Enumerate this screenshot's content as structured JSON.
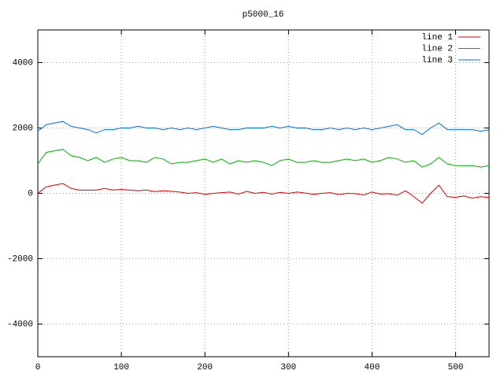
{
  "chart_data": {
    "type": "line",
    "title": "p5000_16",
    "x": [
      0,
      10,
      20,
      30,
      40,
      50,
      60,
      70,
      80,
      90,
      100,
      110,
      120,
      130,
      140,
      150,
      160,
      170,
      180,
      190,
      200,
      210,
      220,
      230,
      240,
      250,
      260,
      270,
      280,
      290,
      300,
      310,
      320,
      330,
      340,
      350,
      360,
      370,
      380,
      390,
      400,
      410,
      420,
      430,
      440,
      450,
      460,
      470,
      480,
      490,
      500,
      510,
      520,
      530,
      540
    ],
    "series": [
      {
        "name": "line 1",
        "color": "#e00000",
        "values": [
          0,
          200,
          250,
          300,
          150,
          100,
          100,
          100,
          150,
          100,
          120,
          100,
          80,
          100,
          50,
          80,
          60,
          40,
          0,
          20,
          -30,
          0,
          20,
          40,
          -20,
          60,
          0,
          30,
          -20,
          30,
          0,
          40,
          10,
          -30,
          0,
          20,
          -40,
          0,
          -10,
          -50,
          40,
          -20,
          -10,
          -60,
          80,
          -100,
          -300,
          0,
          250,
          -100,
          -120,
          -80,
          -150,
          -100,
          -130
        ]
      },
      {
        "name": "line 2",
        "color": "#00b000",
        "values": [
          900,
          1250,
          1300,
          1350,
          1150,
          1100,
          1000,
          1100,
          950,
          1050,
          1100,
          1000,
          1000,
          950,
          1100,
          1050,
          900,
          950,
          950,
          1000,
          1050,
          950,
          1050,
          900,
          1000,
          950,
          1000,
          950,
          850,
          1000,
          1050,
          950,
          950,
          1000,
          950,
          950,
          1000,
          1050,
          1000,
          1050,
          950,
          1000,
          1100,
          1050,
          950,
          1000,
          800,
          900,
          1100,
          900,
          850,
          850,
          850,
          800,
          850
        ]
      },
      {
        "name": "line 3",
        "color": "#0070e0",
        "values": [
          1900,
          2100,
          2150,
          2200,
          2050,
          2000,
          1950,
          1850,
          1950,
          1950,
          2000,
          2000,
          2050,
          2000,
          2000,
          1950,
          2000,
          1950,
          2000,
          1950,
          2000,
          2050,
          2000,
          1950,
          1950,
          2000,
          2000,
          2000,
          2050,
          2000,
          2050,
          2000,
          2000,
          1950,
          1950,
          2000,
          1950,
          2000,
          1950,
          2000,
          1950,
          2000,
          2050,
          2100,
          1950,
          1950,
          1800,
          2000,
          2150,
          1950,
          1950,
          1950,
          1950,
          1900,
          1950
        ]
      }
    ],
    "xlim": [
      0,
      540
    ],
    "xticks": [
      0,
      100,
      200,
      300,
      400,
      500
    ],
    "ylim": [
      -5000,
      5000
    ],
    "yticks": [
      -4000,
      -2000,
      0,
      2000,
      4000
    ],
    "grid": true,
    "legend": "top-right"
  }
}
